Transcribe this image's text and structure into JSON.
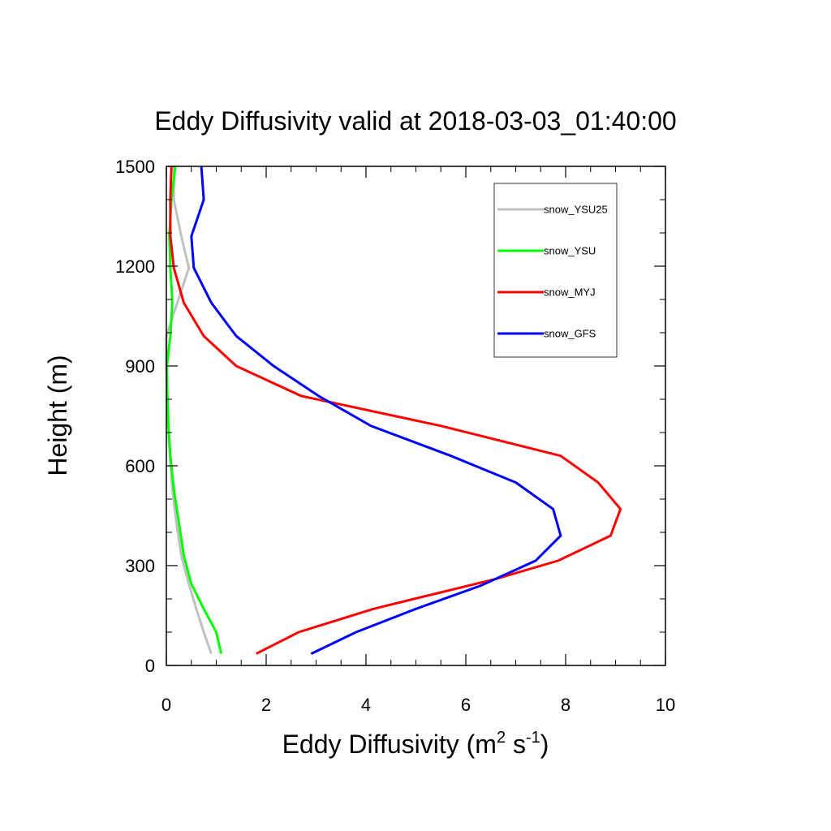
{
  "chart_data": {
    "type": "line",
    "title": "Eddy Diffusivity valid at 2018-03-03_01:40:00",
    "xlabel": {
      "main": "Eddy Diffusivity (m",
      "sup1": "2",
      "mid": " s",
      "sup2": "-1",
      "end": ")"
    },
    "ylabel": "Height (m)",
    "xlim": [
      0,
      10
    ],
    "ylim": [
      0,
      1500
    ],
    "x_ticks": [
      0,
      2,
      4,
      6,
      8,
      10
    ],
    "x_tick_labels": [
      "0",
      "2",
      "4",
      "6",
      "8",
      "10"
    ],
    "y_ticks": [
      0,
      300,
      600,
      900,
      1200,
      1500
    ],
    "y_tick_labels": [
      "0",
      "300",
      "600",
      "900",
      "1200",
      "1500"
    ],
    "x_minor_step": 0.5,
    "y_minor_step": 100,
    "grid": false,
    "legend_placement": "top-right",
    "series": [
      {
        "name": "snow_YSU25",
        "color": "#c0c0c0",
        "points": [
          [
            0.9,
            35
          ],
          [
            0.75,
            100
          ],
          [
            0.6,
            170
          ],
          [
            0.45,
            245
          ],
          [
            0.3,
            330
          ],
          [
            0.2,
            430
          ],
          [
            0.12,
            530
          ],
          [
            0.07,
            630
          ],
          [
            0.04,
            720
          ],
          [
            0.02,
            810
          ],
          [
            0.0,
            900
          ],
          [
            0.0,
            990
          ],
          [
            0.22,
            1090
          ],
          [
            0.45,
            1195
          ],
          [
            0.3,
            1290
          ],
          [
            0.15,
            1400
          ],
          [
            0.15,
            1500
          ]
        ]
      },
      {
        "name": "snow_YSU",
        "color": "#00ff00",
        "points": [
          [
            1.1,
            35
          ],
          [
            1.0,
            100
          ],
          [
            0.75,
            170
          ],
          [
            0.5,
            245
          ],
          [
            0.35,
            330
          ],
          [
            0.25,
            430
          ],
          [
            0.15,
            530
          ],
          [
            0.08,
            630
          ],
          [
            0.04,
            720
          ],
          [
            0.02,
            810
          ],
          [
            0.01,
            900
          ],
          [
            0.08,
            990
          ],
          [
            0.12,
            1090
          ],
          [
            0.08,
            1195
          ],
          [
            0.06,
            1290
          ],
          [
            0.1,
            1400
          ],
          [
            0.18,
            1500
          ]
        ]
      },
      {
        "name": "snow_MYJ",
        "color": "#ff0000",
        "points": [
          [
            1.8,
            35
          ],
          [
            2.65,
            100
          ],
          [
            4.15,
            170
          ],
          [
            6.6,
            260
          ],
          [
            7.85,
            315
          ],
          [
            8.9,
            390
          ],
          [
            9.1,
            470
          ],
          [
            8.65,
            550
          ],
          [
            7.9,
            630
          ],
          [
            5.5,
            720
          ],
          [
            2.7,
            810
          ],
          [
            1.4,
            900
          ],
          [
            0.75,
            990
          ],
          [
            0.35,
            1090
          ],
          [
            0.15,
            1195
          ],
          [
            0.08,
            1290
          ],
          [
            0.08,
            1400
          ],
          [
            0.1,
            1500
          ]
        ]
      },
      {
        "name": "snow_GFS",
        "color": "#0000ff",
        "points": [
          [
            2.9,
            35
          ],
          [
            3.8,
            100
          ],
          [
            5.0,
            170
          ],
          [
            6.3,
            240
          ],
          [
            7.4,
            315
          ],
          [
            7.9,
            390
          ],
          [
            7.75,
            470
          ],
          [
            7.0,
            550
          ],
          [
            5.7,
            630
          ],
          [
            4.1,
            720
          ],
          [
            3.05,
            810
          ],
          [
            2.15,
            900
          ],
          [
            1.4,
            990
          ],
          [
            0.9,
            1090
          ],
          [
            0.55,
            1195
          ],
          [
            0.5,
            1290
          ],
          [
            0.75,
            1400
          ],
          [
            0.7,
            1500
          ]
        ]
      }
    ]
  }
}
